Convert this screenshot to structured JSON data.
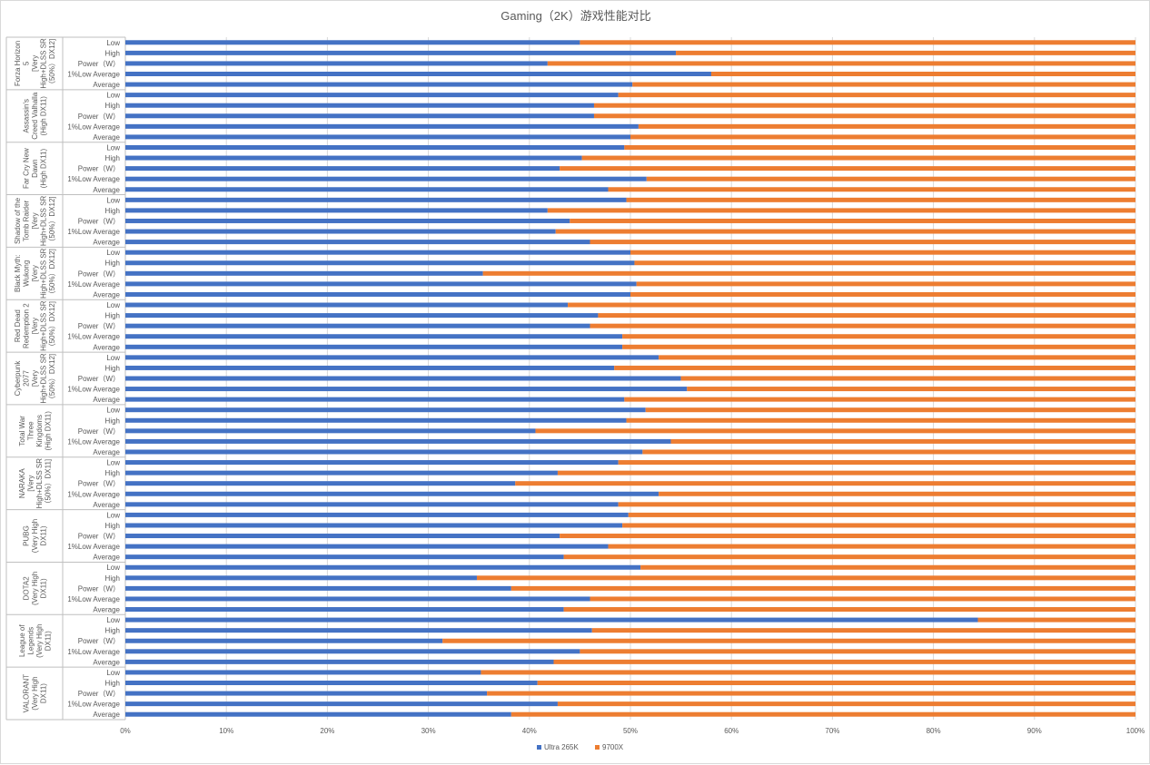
{
  "chart_data": {
    "type": "bar",
    "orientation": "horizontal",
    "stacked": "percent",
    "title": "Gaming（2K）游戏性能对比",
    "series_names": [
      "Ultra 265K",
      "9700X"
    ],
    "colors": {
      "Ultra 265K": "#4472c4",
      "9700X": "#ed7d31"
    },
    "metrics": [
      "Low",
      "High",
      "Power（W）",
      "1%Low Average",
      "Average"
    ],
    "groups": [
      {
        "label": [
          "Forza Horizon",
          "5",
          "[Very",
          "High+DLSS SR",
          "（50%）DX12]"
        ],
        "ultra_share": [
          45.0,
          54.5,
          41.8,
          58.0,
          50.2
        ]
      },
      {
        "label": [
          "Assassin's",
          "Creed Valhalla",
          "(High DX11)"
        ],
        "ultra_share": [
          48.8,
          46.4,
          46.4,
          50.8,
          50.0
        ]
      },
      {
        "label": [
          "Far Cry New",
          "Dawn",
          "(High DX11)"
        ],
        "ultra_share": [
          49.4,
          45.2,
          43.0,
          51.6,
          47.8
        ]
      },
      {
        "label": [
          "Shadow of the",
          "Tomb Raider",
          "[Very",
          "High+DLSS SR",
          "（50%）DX12]"
        ],
        "ultra_share": [
          49.6,
          41.8,
          44.0,
          42.6,
          46.0
        ]
      },
      {
        "label": [
          "Black Myth:",
          "Wukong",
          "[Very",
          "High+DLSS SR",
          "（50%）DX12]"
        ],
        "ultra_share": [
          50.0,
          50.4,
          35.4,
          50.6,
          50.0
        ]
      },
      {
        "label": [
          "Red Dead",
          "Redemption 2",
          "[Very",
          "High+DLSS SR",
          "（50%）DX12]"
        ],
        "ultra_share": [
          43.8,
          46.8,
          46.0,
          49.2,
          49.2
        ]
      },
      {
        "label": [
          "Cyberpunk",
          "2077",
          "[Very",
          "High+DLSS SR",
          "（50%）DX12]"
        ],
        "ultra_share": [
          52.8,
          48.4,
          55.0,
          55.6,
          49.4
        ]
      },
      {
        "label": [
          "Total War",
          "Three",
          "Kingdoms",
          "(High DX11)"
        ],
        "ultra_share": [
          51.5,
          49.6,
          40.6,
          54.0,
          51.2
        ]
      },
      {
        "label": [
          "NARAKA",
          "[Very",
          "High+DLSS SR",
          "（50%）DX11]"
        ],
        "ultra_share": [
          48.8,
          42.8,
          38.6,
          52.8,
          48.8
        ]
      },
      {
        "label": [
          "PUBG",
          "(Very High",
          "DX11)"
        ],
        "ultra_share": [
          49.8,
          49.2,
          43.0,
          47.8,
          43.4
        ]
      },
      {
        "label": [
          "DOTA2",
          "(Very High",
          "DX11)"
        ],
        "ultra_share": [
          51.0,
          34.8,
          38.2,
          46.0,
          43.4
        ]
      },
      {
        "label": [
          "League of",
          "Legends",
          "(Very High",
          "DX11)"
        ],
        "ultra_share": [
          84.4,
          46.2,
          31.4,
          45.0,
          42.4
        ]
      },
      {
        "label": [
          "VALORANT",
          "(Very High",
          "DX11)"
        ],
        "ultra_share": [
          35.2,
          40.8,
          35.8,
          42.8,
          38.2
        ]
      }
    ],
    "x_ticks": [
      "0%",
      "10%",
      "20%",
      "30%",
      "40%",
      "50%",
      "60%",
      "70%",
      "80%",
      "90%",
      "100%"
    ],
    "xlim": [
      0,
      100
    ],
    "grid": true,
    "legend": "bottom"
  }
}
